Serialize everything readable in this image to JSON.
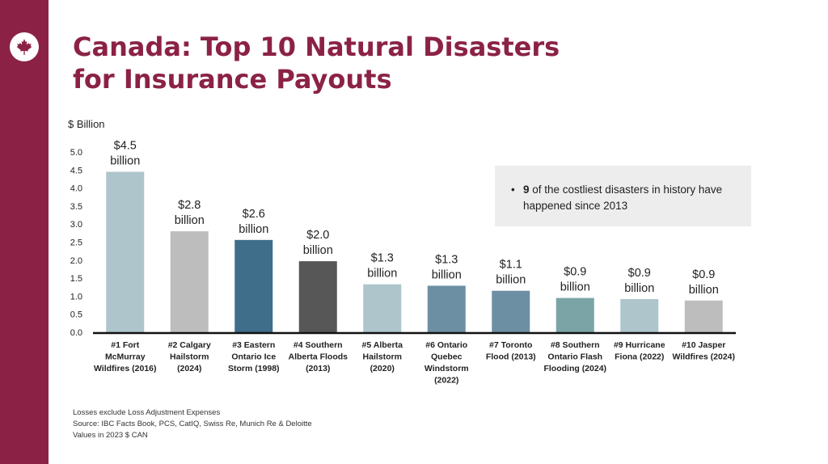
{
  "slide": {
    "title_line1": "Canada: Top 10 Natural Disasters",
    "title_line2": "for Insurance Payouts",
    "brand_color": "#8b2246",
    "logo_icon": "maple-leaf-icon"
  },
  "note": {
    "bullet": "•",
    "bold_text": "9",
    "text": " of the costliest disasters in history have happened since 2013"
  },
  "footnotes": [
    "Losses exclude Loss Adjustment Expenses",
    "Source: IBC Facts Book, PCS,  CatIQ, Swiss Re, Munich Re & Deloitte",
    "Values in 2023 $ CAN"
  ],
  "chart_data": {
    "type": "bar",
    "ylabel": "$ Billion",
    "ylim": [
      0,
      5.0
    ],
    "yticks": [
      "0.0",
      "0.5",
      "1.0",
      "1.5",
      "2.0",
      "2.5",
      "3.0",
      "3.5",
      "4.0",
      "4.5",
      "5.0"
    ],
    "grid": false,
    "categories": [
      [
        "#1 Fort",
        "McMurray",
        "Wildfires (2016)"
      ],
      [
        "#2 Calgary",
        "Hailstorm",
        "(2024)"
      ],
      [
        "#3 Eastern",
        "Ontario Ice",
        "Storm (1998)"
      ],
      [
        "#4 Southern",
        "Alberta Floods",
        "(2013)"
      ],
      [
        "#5 Alberta",
        "Hailstorm",
        "(2020)"
      ],
      [
        "#6 Ontario",
        "Quebec",
        "Windstorm",
        "(2022)"
      ],
      [
        "#7 Toronto",
        "Flood (2013)"
      ],
      [
        "#8 Southern",
        "Ontario Flash",
        "Flooding (2024)"
      ],
      [
        "#9 Hurricane",
        "Fiona (2022)"
      ],
      [
        "#10 Jasper",
        "Wildfires (2024)"
      ]
    ],
    "values": [
      4.45,
      2.8,
      2.56,
      1.97,
      1.33,
      1.29,
      1.15,
      0.95,
      0.92,
      0.88
    ],
    "data_labels": [
      [
        "$4.5",
        "billion"
      ],
      [
        "$2.8",
        "billion"
      ],
      [
        "$2.6",
        "billion"
      ],
      [
        "$2.0",
        "billion"
      ],
      [
        "$1.3",
        "billion"
      ],
      [
        "$1.3",
        "billion"
      ],
      [
        "$1.1",
        "billion"
      ],
      [
        "$0.9",
        "billion"
      ],
      [
        "$0.9",
        "billion"
      ],
      [
        "$0.9",
        "billion"
      ]
    ],
    "colors": [
      "#aec5cb",
      "#bdbdbd",
      "#3e6e8a",
      "#575757",
      "#aec5cb",
      "#6d8fa3",
      "#6d8fa3",
      "#7aa4a6",
      "#aec5cb",
      "#bdbdbd"
    ]
  }
}
